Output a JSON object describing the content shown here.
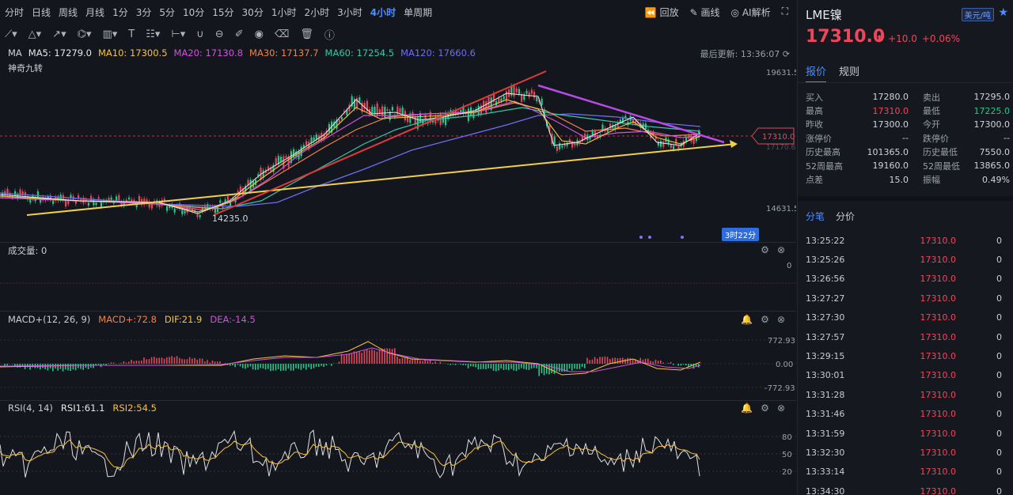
{
  "periods": [
    "分时",
    "日线",
    "周线",
    "月线",
    "1分",
    "3分",
    "5分",
    "10分",
    "15分",
    "30分",
    "1小时",
    "2小时",
    "3小时",
    "4小时",
    "单周期"
  ],
  "active_period": "4小时",
  "top_actions": [
    "回放",
    "画线",
    "AI解析"
  ],
  "ma": {
    "label": "MA",
    "items": [
      {
        "text": "MA5: 17279.0",
        "color": "#e8e8e8"
      },
      {
        "text": "MA10: 17300.5",
        "color": "#f5c242"
      },
      {
        "text": "MA20: 17130.8",
        "color": "#d152d9"
      },
      {
        "text": "MA30: 17137.7",
        "color": "#f0824a"
      },
      {
        "text": "MA60: 17254.5",
        "color": "#36c7a8"
      },
      {
        "text": "MA120: 17660.6",
        "color": "#6f6cf2"
      }
    ]
  },
  "last_update": "最后更新: 13:36:07",
  "indicator_nine": "神奇九转",
  "price_axis": {
    "top": "19631.5",
    "bottom": "14631.5",
    "current": "17310.0",
    "ghost": "17170.6"
  },
  "low_label": "14235.0",
  "timer_badge": "3时22分",
  "volume": {
    "label": "成交量: 0",
    "axis": "0"
  },
  "macd": {
    "label": "MACD+(12, 26, 9)",
    "macd": "MACD+:72.8",
    "dif": "DIF:21.9",
    "dea": "DEA:-14.5",
    "axis_top": "772.93",
    "axis_mid": "0.00",
    "axis_bot": "-772.93"
  },
  "rsi": {
    "label": "RSI(4, 14)",
    "rsi1": "RSI1:61.1",
    "rsi2": "RSI2:54.5",
    "axis": [
      "80",
      "50",
      "20"
    ]
  },
  "right": {
    "title": "LME镍",
    "unit": "美元/吨",
    "price": "17310.0",
    "change": "+10.0",
    "change_pct": "+0.06%",
    "tabs": [
      "报价",
      "规则"
    ],
    "quote": [
      {
        "k": "买入",
        "v": "17280.0",
        "k2": "卖出",
        "v2": "17295.0"
      },
      {
        "k": "最高",
        "v": "17310.0",
        "k2": "最低",
        "v2": "17225.0"
      },
      {
        "k": "昨收",
        "v": "17300.0",
        "k2": "今开",
        "v2": "17300.0"
      },
      {
        "k": "涨停价",
        "v": "--",
        "k2": "跌停价",
        "v2": "--"
      },
      {
        "k": "历史最高",
        "v": "101365.0",
        "k2": "历史最低",
        "v2": "7550.0"
      },
      {
        "k": "52周最高",
        "v": "19160.0",
        "k2": "52周最低",
        "v2": "13865.0"
      },
      {
        "k": "点差",
        "v": "15.0",
        "k2": "振幅",
        "v2": "0.49%"
      }
    ],
    "tabs2": [
      "分笔",
      "分价"
    ],
    "ticks": [
      {
        "t": "13:25:22",
        "p": "17310.0",
        "vol": "0"
      },
      {
        "t": "13:25:26",
        "p": "17310.0",
        "vol": "0"
      },
      {
        "t": "13:26:56",
        "p": "17310.0",
        "vol": "0"
      },
      {
        "t": "13:27:27",
        "p": "17310.0",
        "vol": "0"
      },
      {
        "t": "13:27:30",
        "p": "17310.0",
        "vol": "0"
      },
      {
        "t": "13:27:57",
        "p": "17310.0",
        "vol": "0"
      },
      {
        "t": "13:29:15",
        "p": "17310.0",
        "vol": "0"
      },
      {
        "t": "13:30:01",
        "p": "17310.0",
        "vol": "0"
      },
      {
        "t": "13:31:28",
        "p": "17310.0",
        "vol": "0"
      },
      {
        "t": "13:31:46",
        "p": "17310.0",
        "vol": "0"
      },
      {
        "t": "13:31:59",
        "p": "17310.0",
        "vol": "0"
      },
      {
        "t": "13:32:30",
        "p": "17310.0",
        "vol": "0"
      },
      {
        "t": "13:33:14",
        "p": "17310.0",
        "vol": "0"
      },
      {
        "t": "13:34:30",
        "p": "17310.0",
        "vol": "0"
      }
    ]
  }
}
